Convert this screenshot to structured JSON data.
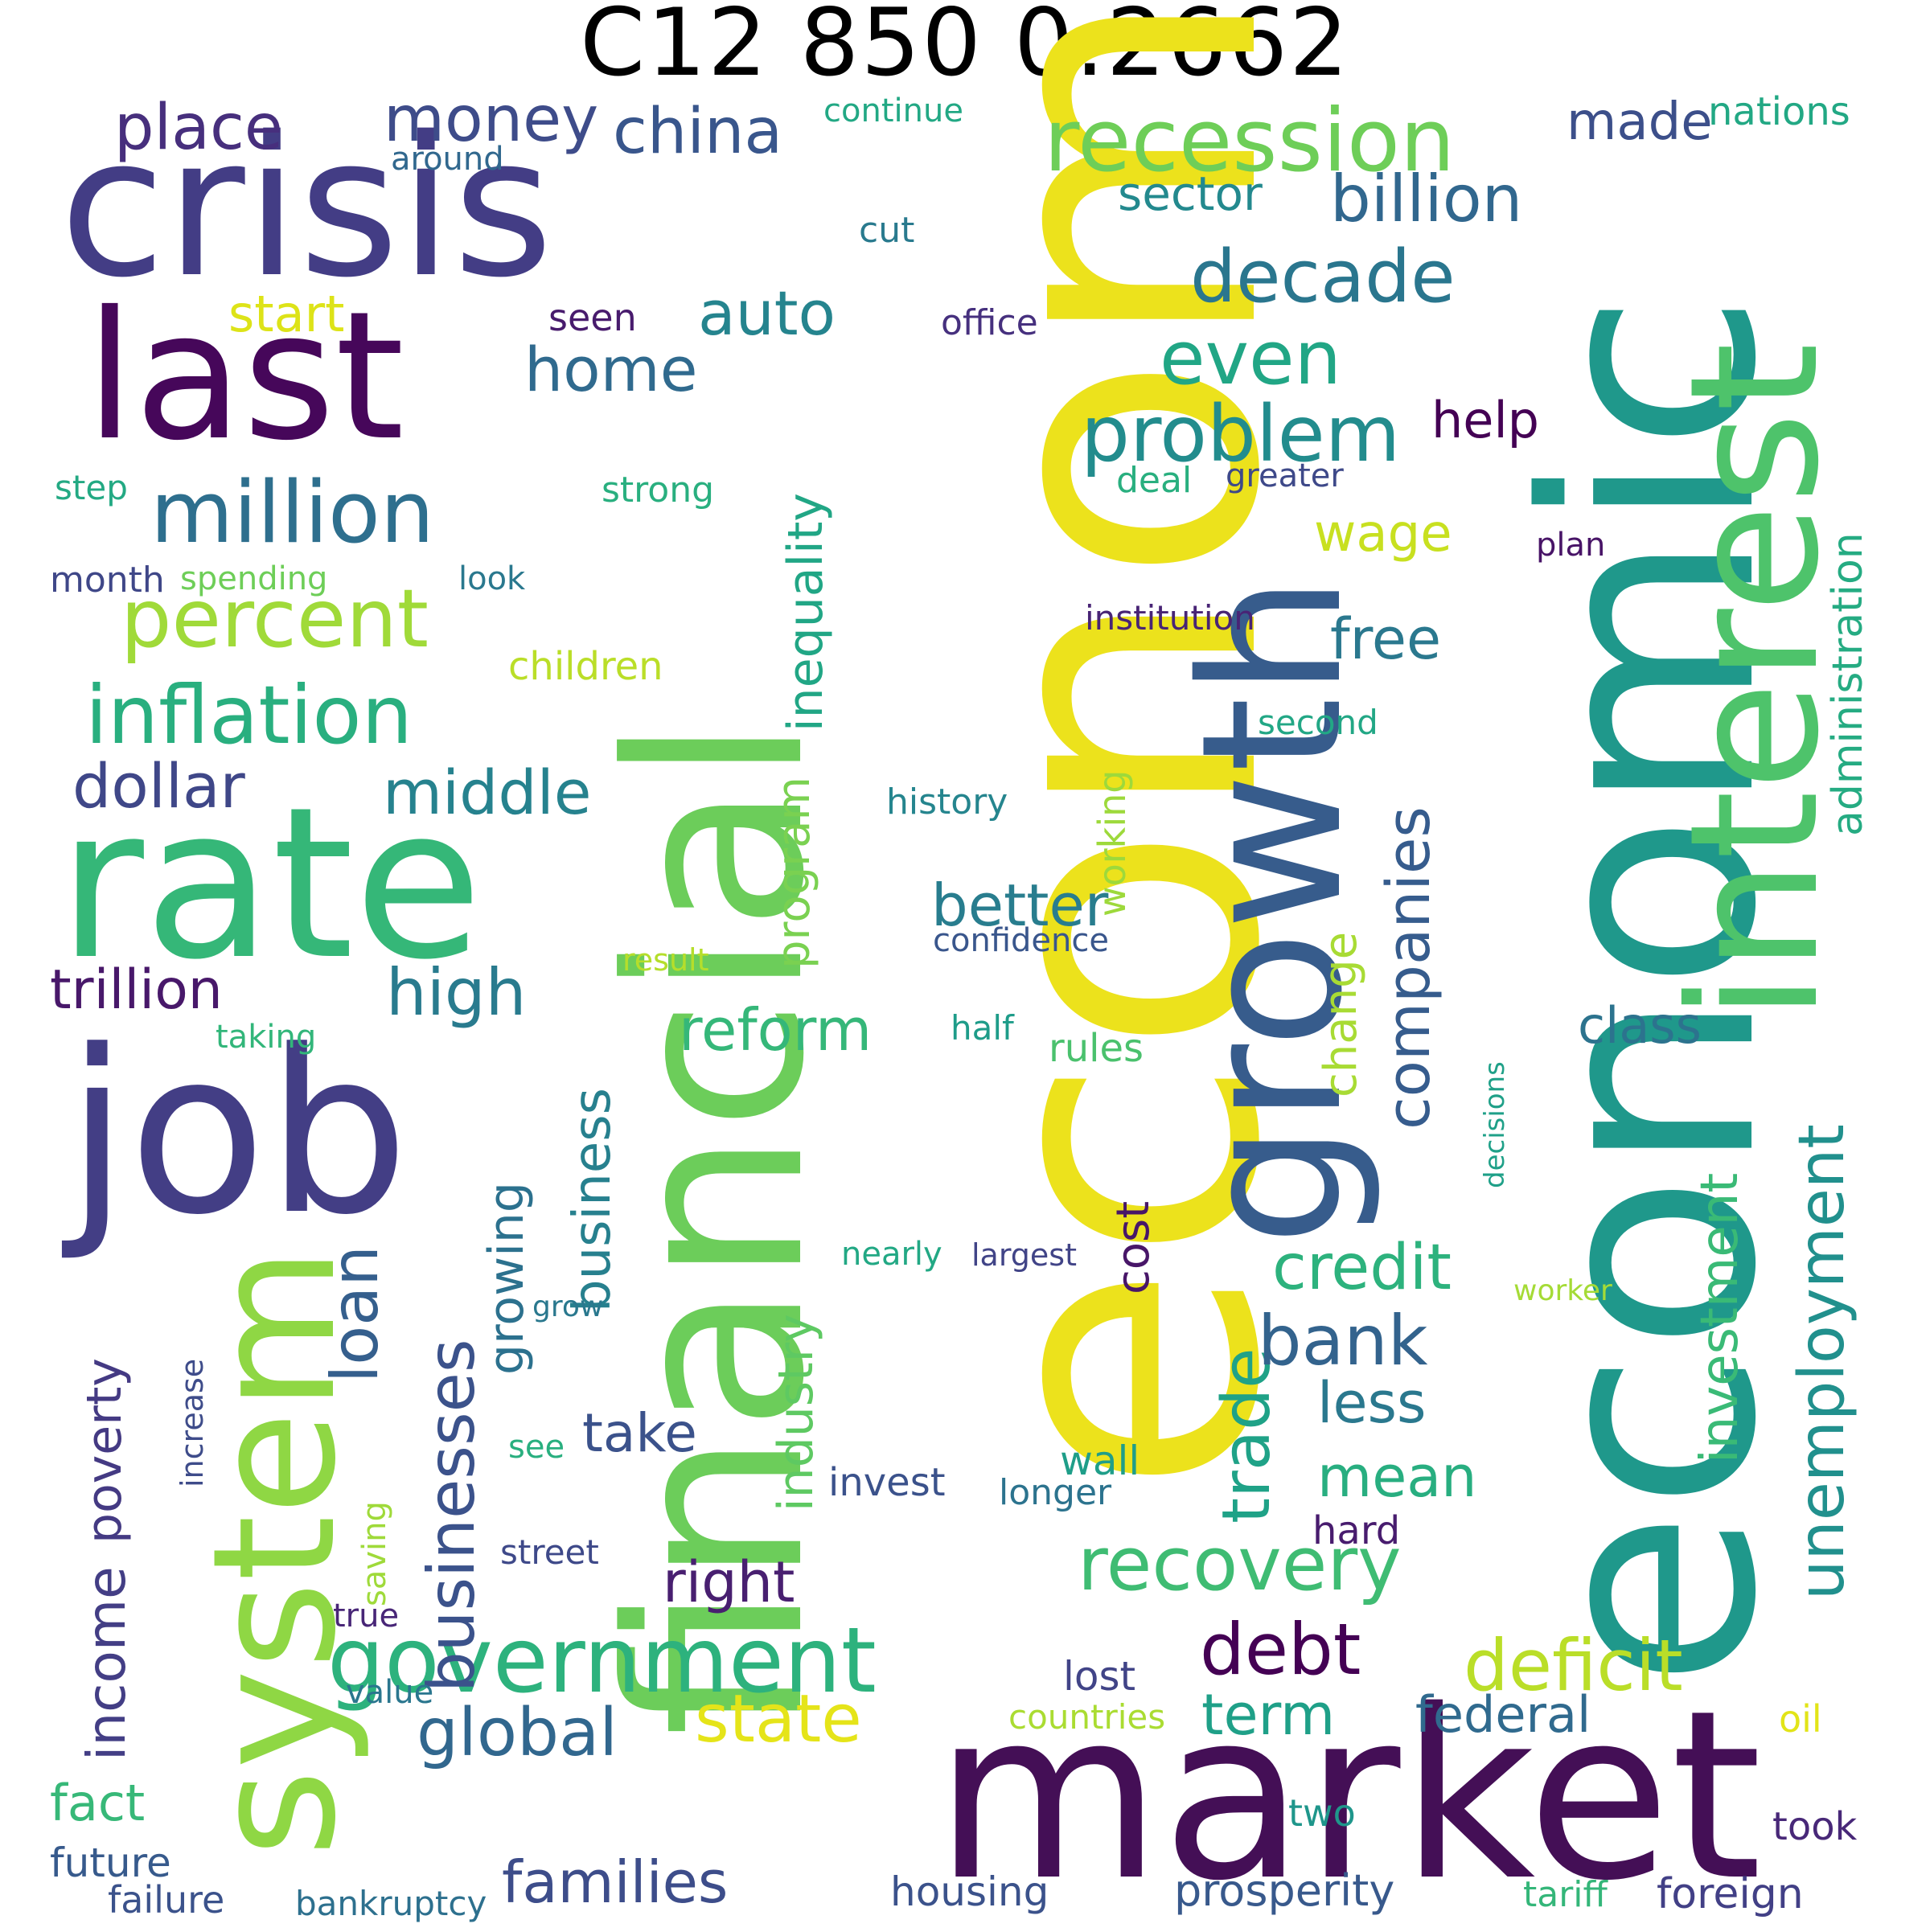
{
  "title": "C12 850 0.2662",
  "words": [
    {
      "text": "economy",
      "color": "#ece21c"
    },
    {
      "text": "economic",
      "color": "#1f988b"
    },
    {
      "text": "financial",
      "color": "#6ccd5a"
    },
    {
      "text": "market",
      "color": "#440f56"
    },
    {
      "text": "crisis",
      "color": "#433d85"
    },
    {
      "text": "rate",
      "color": "#35b778"
    },
    {
      "text": "job",
      "color": "#433e85"
    },
    {
      "text": "growth",
      "color": "#375c8c"
    },
    {
      "text": "interest",
      "color": "#4ec36b"
    },
    {
      "text": "system",
      "color": "#8fd744"
    },
    {
      "text": "last",
      "color": "#46075a"
    },
    {
      "text": "recession",
      "color": "#6ece58"
    },
    {
      "text": "government",
      "color": "#2db27d"
    },
    {
      "text": "million",
      "color": "#2e6f8e"
    },
    {
      "text": "inflation",
      "color": "#29af7f"
    },
    {
      "text": "percent",
      "color": "#a0da39"
    },
    {
      "text": "problem",
      "color": "#228c8d"
    },
    {
      "text": "unemployment",
      "color": "#21908d"
    },
    {
      "text": "recovery",
      "color": "#3fbc73"
    },
    {
      "text": "companies",
      "color": "#365c8d"
    },
    {
      "text": "decade",
      "color": "#2a768e"
    },
    {
      "text": "businesses",
      "color": "#3b528b"
    },
    {
      "text": "china",
      "color": "#39568c"
    },
    {
      "text": "money",
      "color": "#3e4c8a"
    },
    {
      "text": "place",
      "color": "#472f7d"
    },
    {
      "text": "billion",
      "color": "#31678e"
    },
    {
      "text": "even",
      "color": "#21a685"
    },
    {
      "text": "trade",
      "color": "#1fa287"
    },
    {
      "text": "state",
      "color": "#e5e419"
    },
    {
      "text": "families",
      "color": "#3d4d8a"
    },
    {
      "text": "deficit",
      "color": "#bade28"
    },
    {
      "text": "debt",
      "color": "#440154"
    },
    {
      "text": "global",
      "color": "#31678e"
    },
    {
      "text": "bank",
      "color": "#33638d"
    },
    {
      "text": "credit",
      "color": "#2db27d"
    },
    {
      "text": "home",
      "color": "#306a8e"
    },
    {
      "text": "auto",
      "color": "#25848e"
    },
    {
      "text": "dollar",
      "color": "#3f4788"
    },
    {
      "text": "middle",
      "color": "#26828e"
    },
    {
      "text": "high",
      "color": "#297b8e"
    },
    {
      "text": "trillion",
      "color": "#48186a"
    },
    {
      "text": "business",
      "color": "#27808e"
    },
    {
      "text": "investment",
      "color": "#3aba76"
    },
    {
      "text": "administration",
      "color": "#25ab82"
    },
    {
      "text": "inequality",
      "color": "#21a685"
    },
    {
      "text": "income",
      "color": "#433e85"
    },
    {
      "text": "poverty",
      "color": "#443a83"
    },
    {
      "text": "loan",
      "color": "#355f8d"
    },
    {
      "text": "growing",
      "color": "#2c718e"
    },
    {
      "text": "industry",
      "color": "#5ec962"
    },
    {
      "text": "program",
      "color": "#7ad151"
    },
    {
      "text": "better",
      "color": "#287d8e"
    },
    {
      "text": "reform",
      "color": "#35b779"
    },
    {
      "text": "right",
      "color": "#481f70"
    },
    {
      "text": "take",
      "color": "#3b528b"
    },
    {
      "text": "change",
      "color": "#a8db34"
    },
    {
      "text": "wage",
      "color": "#c8e020"
    },
    {
      "text": "free",
      "color": "#2a788e"
    },
    {
      "text": "less",
      "color": "#2a788e"
    },
    {
      "text": "mean",
      "color": "#28ae80"
    },
    {
      "text": "term",
      "color": "#1fa088"
    },
    {
      "text": "federal",
      "color": "#306a8e"
    },
    {
      "text": "class",
      "color": "#2c738e"
    },
    {
      "text": "help",
      "color": "#440154"
    },
    {
      "text": "sector",
      "color": "#23898e"
    },
    {
      "text": "made",
      "color": "#3c4f8a"
    },
    {
      "text": "fact",
      "color": "#37b878"
    },
    {
      "text": "cost",
      "color": "#481668"
    },
    {
      "text": "start",
      "color": "#dde318"
    },
    {
      "text": "prosperity",
      "color": "#38598c"
    },
    {
      "text": "housing",
      "color": "#3b528b"
    },
    {
      "text": "foreign",
      "color": "#424086"
    },
    {
      "text": "future",
      "color": "#375a8c"
    },
    {
      "text": "failure",
      "color": "#3b528b"
    },
    {
      "text": "bankruptcy",
      "color": "#2d708e"
    },
    {
      "text": "children",
      "color": "#bade28"
    },
    {
      "text": "working",
      "color": "#9dd93b"
    },
    {
      "text": "history",
      "color": "#25858e"
    },
    {
      "text": "confidence",
      "color": "#39568c"
    },
    {
      "text": "rules",
      "color": "#4ac16d"
    },
    {
      "text": "half",
      "color": "#1e9c89"
    },
    {
      "text": "result",
      "color": "#b5de2b"
    },
    {
      "text": "taking",
      "color": "#32b67a"
    },
    {
      "text": "institution",
      "color": "#482475"
    },
    {
      "text": "second",
      "color": "#22a785"
    },
    {
      "text": "continue",
      "color": "#22a884"
    },
    {
      "text": "nations",
      "color": "#22a884"
    },
    {
      "text": "around",
      "color": "#31688e"
    },
    {
      "text": "cut",
      "color": "#297a8e"
    },
    {
      "text": "seen",
      "color": "#481b6d"
    },
    {
      "text": "office",
      "color": "#46307e"
    },
    {
      "text": "step",
      "color": "#23a983"
    },
    {
      "text": "strong",
      "color": "#29af7f"
    },
    {
      "text": "deal",
      "color": "#29af7f"
    },
    {
      "text": "greater",
      "color": "#3e4989"
    },
    {
      "text": "plan",
      "color": "#481467"
    },
    {
      "text": "month",
      "color": "#3f4788"
    },
    {
      "text": "spending",
      "color": "#6ece58"
    },
    {
      "text": "look",
      "color": "#2a788e"
    },
    {
      "text": "decisions",
      "color": "#1fa088"
    },
    {
      "text": "nearly",
      "color": "#22a884"
    },
    {
      "text": "largest",
      "color": "#414487"
    },
    {
      "text": "worker",
      "color": "#a5db36"
    },
    {
      "text": "grow",
      "color": "#2a788e"
    },
    {
      "text": "increase",
      "color": "#3e4c8a"
    },
    {
      "text": "see",
      "color": "#29af7f"
    },
    {
      "text": "saving",
      "color": "#9fda3a"
    },
    {
      "text": "invest",
      "color": "#3b528b"
    },
    {
      "text": "longer",
      "color": "#2c738e"
    },
    {
      "text": "wall",
      "color": "#1f9e89"
    },
    {
      "text": "hard",
      "color": "#481c6e"
    },
    {
      "text": "street",
      "color": "#3e4989"
    },
    {
      "text": "true",
      "color": "#482677"
    },
    {
      "text": "value",
      "color": "#2a768e"
    },
    {
      "text": "lost",
      "color": "#414487"
    },
    {
      "text": "countries",
      "color": "#aadc32"
    },
    {
      "text": "two",
      "color": "#1f968b"
    },
    {
      "text": "oil",
      "color": "#e2e418"
    },
    {
      "text": "took",
      "color": "#482878"
    },
    {
      "text": "tariff",
      "color": "#34b679"
    }
  ]
}
